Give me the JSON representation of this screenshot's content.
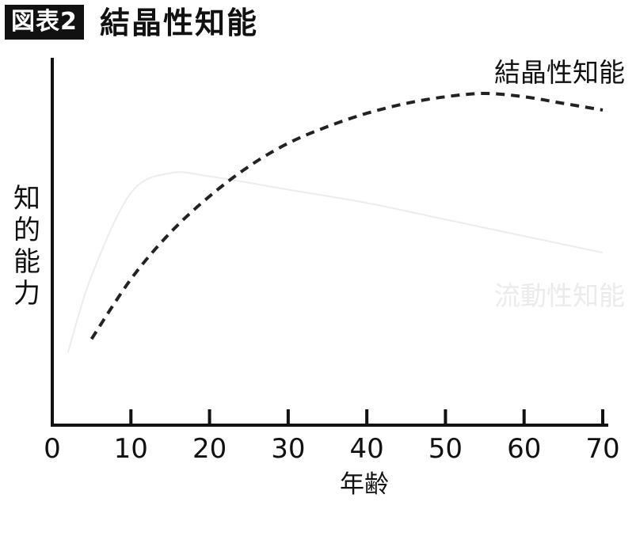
{
  "figure": {
    "badge": "図表2",
    "title": "結晶性知能"
  },
  "chart_data": {
    "type": "line",
    "title": "結晶性知能",
    "xlabel": "年齢",
    "ylabel": "知的能力",
    "xlim": [
      0,
      70
    ],
    "x_ticks": [
      0,
      10,
      20,
      30,
      40,
      50,
      60,
      70
    ],
    "x_tick_labels": [
      "0",
      "10",
      "20",
      "30",
      "40",
      "50",
      "60",
      "70"
    ],
    "y_ticks_shown": false,
    "grid": false,
    "series": [
      {
        "name": "結晶性知能",
        "style": "dashed",
        "color": "#222222",
        "x": [
          5,
          10,
          15,
          20,
          25,
          30,
          35,
          40,
          45,
          50,
          55,
          60,
          65,
          70
        ],
        "y": [
          0.26,
          0.44,
          0.58,
          0.69,
          0.78,
          0.85,
          0.9,
          0.94,
          0.97,
          0.99,
          1.0,
          0.99,
          0.97,
          0.95
        ]
      },
      {
        "name": "流動性知能",
        "style": "solid-faint",
        "color": "#ececec",
        "x": [
          2,
          5,
          10,
          15,
          20,
          30,
          40,
          50,
          60,
          70
        ],
        "y": [
          0.22,
          0.45,
          0.7,
          0.76,
          0.75,
          0.71,
          0.67,
          0.62,
          0.57,
          0.52
        ]
      }
    ]
  }
}
